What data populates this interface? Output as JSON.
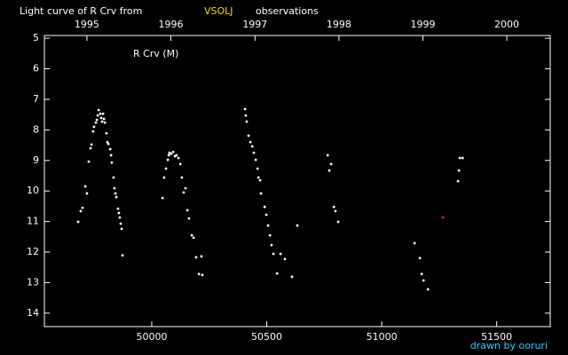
{
  "chart_data": {
    "type": "scatter",
    "title": "Light curve of R Crv from",
    "source": "VSOLJ",
    "title_end": "observations",
    "annotation": "R Crv (M)",
    "footer": "drawn by ooruri",
    "xlim": [
      49533,
      51733
    ],
    "xticks": [
      50000,
      50500,
      51000,
      51500
    ],
    "x2ticks": [
      {
        "value": 49718,
        "label": "1995"
      },
      {
        "value": 50083,
        "label": "1996"
      },
      {
        "value": 50449,
        "label": "1997"
      },
      {
        "value": 50814,
        "label": "1998"
      },
      {
        "value": 51179,
        "label": "1999"
      },
      {
        "value": 51544,
        "label": "2000"
      }
    ],
    "ylim": [
      14.44,
      4.91
    ],
    "yticks": [
      5,
      6,
      7,
      8,
      9,
      10,
      11,
      12,
      13,
      14
    ],
    "series": [
      {
        "color": "#ffffff",
        "x": [
          49680,
          49691,
          49699,
          49711,
          49718,
          49726,
          49734,
          49738,
          49745,
          49749,
          49757,
          49761,
          49765,
          49769,
          49776,
          49780,
          49784,
          49788,
          49792,
          49796,
          49803,
          49807,
          49811,
          49819,
          49823,
          49826,
          49834,
          49838,
          49842,
          49846,
          49853,
          49857,
          49861,
          49865,
          49869,
          49873,
          50047,
          50054,
          50062,
          50070,
          50074,
          50077,
          50085,
          50093,
          50101,
          50108,
          50116,
          50124,
          50131,
          50139,
          50147,
          50155,
          50162,
          50174,
          50182,
          50193,
          50205,
          50216,
          50220,
          50406,
          50409,
          50413,
          50421,
          50429,
          50437,
          50444,
          50452,
          50460,
          50464,
          50471,
          50475,
          50491,
          50498,
          50506,
          50514,
          50521,
          50529,
          50545,
          50560,
          50579,
          50610,
          50633,
          50765,
          50772,
          50780,
          50792,
          50799,
          50811,
          51143,
          51166,
          51174,
          51182,
          51201,
          51332,
          51336,
          51340,
          51352
        ],
        "values": [
          11.01,
          10.66,
          10.55,
          9.85,
          10.08,
          9.04,
          8.6,
          8.48,
          8.05,
          7.9,
          7.76,
          7.67,
          7.53,
          7.35,
          7.47,
          7.61,
          7.73,
          7.47,
          7.64,
          7.76,
          8.11,
          8.4,
          8.46,
          8.63,
          8.83,
          9.07,
          9.56,
          9.91,
          10.08,
          10.2,
          10.58,
          10.72,
          10.87,
          11.07,
          11.24,
          12.11,
          10.23,
          9.56,
          9.27,
          8.98,
          8.83,
          8.75,
          8.78,
          8.72,
          8.86,
          8.83,
          8.92,
          9.12,
          9.56,
          10.05,
          9.91,
          10.63,
          10.9,
          11.45,
          11.53,
          12.17,
          12.72,
          12.14,
          12.75,
          7.32,
          7.53,
          7.73,
          8.19,
          8.4,
          8.54,
          8.75,
          8.98,
          9.27,
          9.56,
          9.65,
          10.08,
          10.52,
          10.78,
          11.13,
          11.45,
          11.77,
          12.06,
          12.7,
          12.06,
          12.23,
          12.81,
          11.13,
          8.83,
          9.33,
          9.12,
          10.52,
          10.66,
          11.01,
          11.71,
          12.2,
          12.72,
          12.93,
          13.22,
          9.68,
          9.33,
          8.92,
          8.92
        ]
      },
      {
        "color": "#dd2222",
        "x": [
          51266
        ],
        "values": [
          10.87
        ]
      }
    ]
  }
}
